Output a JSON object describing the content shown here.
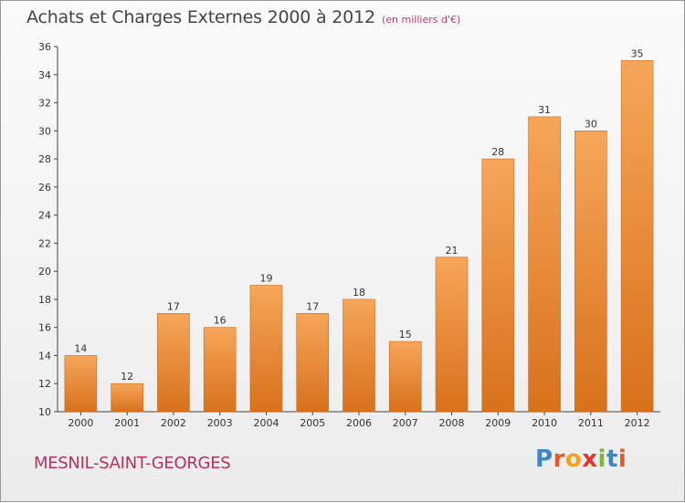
{
  "title": "Achats et Charges Externes 2000 à 2012",
  "unit": "(en milliers d'€)",
  "commune": "MESNIL-SAINT-GEORGES",
  "logo": {
    "text": "Proxiti",
    "letters": [
      {
        "ch": "P",
        "color": "#3a86c8"
      },
      {
        "ch": "r",
        "color": "#e25a2a"
      },
      {
        "ch": "o",
        "color": "#f2a21f"
      },
      {
        "ch": "x",
        "color": "#e2382a"
      },
      {
        "ch": "i",
        "color": "#7ab83a"
      },
      {
        "ch": "t",
        "color": "#3a86c8"
      },
      {
        "ch": "i",
        "color": "#e25a2a"
      }
    ]
  },
  "colors": {
    "bar_top": "#f6a65a",
    "bar_bottom": "#d8711c",
    "axis": "#444444",
    "grid": "#dddddd"
  },
  "chart_data": {
    "type": "bar",
    "title": "Achats et Charges Externes 2000 à 2012",
    "xlabel": "",
    "ylabel": "",
    "categories": [
      "2000",
      "2001",
      "2002",
      "2003",
      "2004",
      "2005",
      "2006",
      "2007",
      "2008",
      "2009",
      "2010",
      "2011",
      "2012"
    ],
    "values": [
      14,
      12,
      17,
      16,
      19,
      17,
      18,
      15,
      21,
      28,
      31,
      30,
      35
    ],
    "ylim": [
      10,
      36
    ],
    "yticks": [
      10,
      12,
      14,
      16,
      18,
      20,
      22,
      24,
      26,
      28,
      30,
      32,
      34,
      36
    ],
    "grid": false,
    "data_labels": true
  }
}
